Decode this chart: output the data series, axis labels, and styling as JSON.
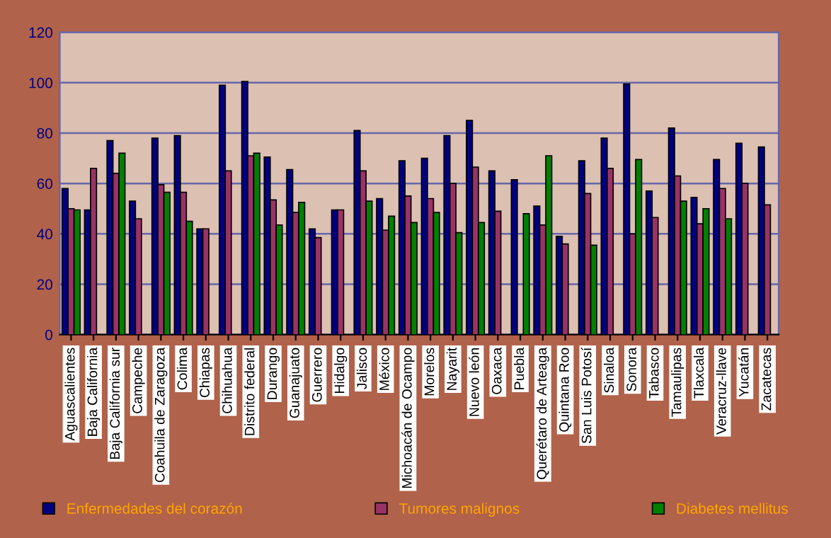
{
  "chart_data": {
    "type": "bar",
    "categories": [
      "Aguascalientes",
      "Baja California",
      "Baja California sur",
      "Campeche",
      "Coahuila de Zaragoza",
      "Colima",
      "Chiapas",
      "Chihuahua",
      "Distrito federal",
      "Durango",
      "Guanajuato",
      "Guerrero",
      "Hidalgo",
      "Jalisco",
      "México",
      "Michoacán de Ocampo",
      "Morelos",
      "Nayarit",
      "Nuevo león",
      "Oaxaca",
      "Puebla",
      "Querétaro de Arteaga",
      "Quintana Roo",
      "San Luis Potosí",
      "Sinaloa",
      "Sonora",
      "Tabasco",
      "Tamaulipas",
      "Tlaxcala",
      "Veracruz-llave",
      "Yucatán",
      "Zacatecas"
    ],
    "series": [
      {
        "name": "Enfermedades del corazón",
        "color": "#000080",
        "values": [
          58,
          49.5,
          77,
          53,
          78,
          79,
          42,
          99,
          100.5,
          70.5,
          65.5,
          42,
          49.5,
          81,
          54,
          69,
          70,
          79,
          85,
          65,
          61.5,
          51,
          39,
          69,
          78,
          99.5,
          57,
          82,
          54.5,
          69.5,
          76,
          74.5
        ]
      },
      {
        "name": "Tumores malignos",
        "color": "#993366",
        "values": [
          50,
          66,
          64,
          46,
          59.5,
          56.5,
          42,
          65,
          71,
          53.5,
          48.5,
          38.5,
          49.5,
          65,
          41.5,
          55,
          54,
          60,
          66.5,
          49,
          null,
          43.5,
          36,
          56,
          66,
          40,
          46.5,
          63,
          44,
          58,
          60,
          51.5
        ]
      },
      {
        "name": "Diabetes mellitus",
        "color": "#008000",
        "values": [
          49.5,
          null,
          72,
          null,
          56.5,
          45,
          null,
          null,
          72,
          43.5,
          52.5,
          null,
          null,
          53,
          47,
          44.5,
          48.5,
          40.5,
          44.5,
          null,
          48,
          71,
          null,
          35.5,
          null,
          69.5,
          null,
          53,
          50,
          46,
          null,
          null
        ]
      }
    ],
    "ylim": [
      0,
      120
    ],
    "yticks": [
      0,
      20,
      40,
      60,
      80,
      100,
      120
    ],
    "grid": "y",
    "legend": "bottom"
  }
}
